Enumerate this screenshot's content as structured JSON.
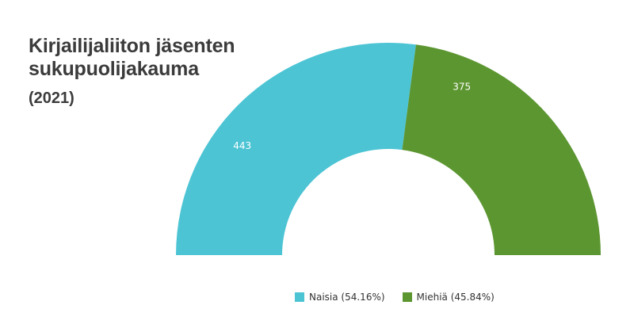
{
  "chart_data": {
    "type": "pie",
    "variant": "semi-donut",
    "title": "Kirjailijaliiton jäsenten sukupuolijakauma",
    "subtitle": "(2021)",
    "slices": [
      {
        "label": "Naisia (54.16%)",
        "value": 443,
        "percent": 54.16,
        "color": "#4cc4d4"
      },
      {
        "label": "Miehiä (45.84%)",
        "value": 375,
        "percent": 45.84,
        "color": "#5c9631"
      }
    ],
    "legend_position": "bottom-center"
  }
}
